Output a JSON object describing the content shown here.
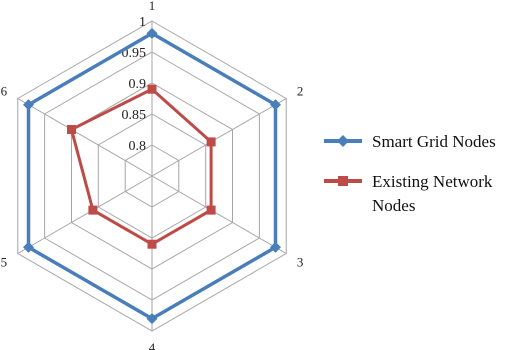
{
  "chart_data": {
    "type": "radar",
    "categories": [
      "1",
      "2",
      "3",
      "4",
      "5",
      "6"
    ],
    "rlim": [
      0.75,
      1
    ],
    "ticks": [
      0.8,
      0.85,
      0.9,
      0.95,
      1
    ],
    "tick_labels": [
      "0.8",
      "0.85",
      "0.9",
      "0.95",
      "1"
    ],
    "grid": true,
    "legend": "right",
    "series": [
      {
        "name": "Smart Grid Nodes",
        "values": [
          0.98,
          0.98,
          0.98,
          0.98,
          0.98,
          0.98
        ],
        "color": "#4a7ebb",
        "marker": "diamond"
      },
      {
        "name": "Existing Network Nodes",
        "values": [
          0.89,
          0.86,
          0.86,
          0.86,
          0.86,
          0.9
        ],
        "color": "#be4b48",
        "marker": "square"
      }
    ]
  }
}
